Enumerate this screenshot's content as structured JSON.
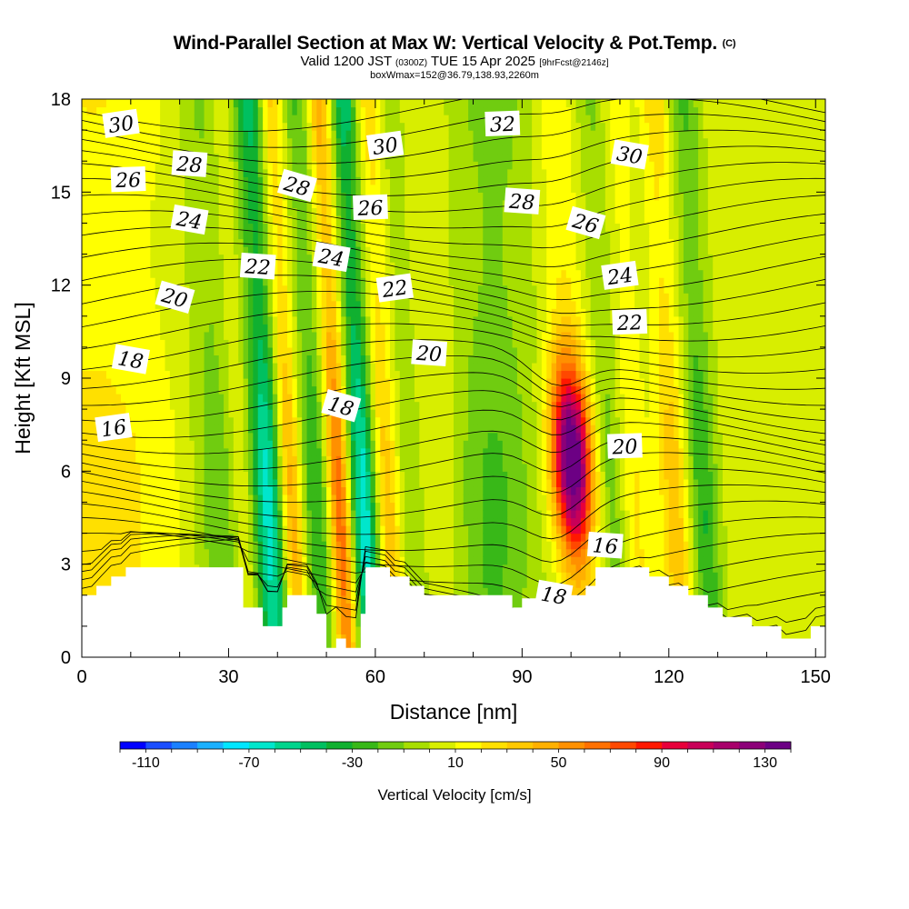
{
  "header": {
    "title_main": "Wind-Parallel Section at Max W: Vertical Velocity & Pot.Temp.",
    "title_mark": "(C)",
    "valid_prefix": "Valid 1200 JST",
    "valid_utc": "(0300Z)",
    "valid_date": "TUE 15 Apr 2025",
    "valid_fcst": "[9hrFcst@2146z]",
    "box_info": "boxWmax=152@36.79,138.93,2260m"
  },
  "chart_data": {
    "type": "heatmap",
    "xlabel": "Distance [nm]",
    "ylabel": "Height [Kft MSL]",
    "xlim": [
      0,
      152
    ],
    "ylim": [
      0,
      18
    ],
    "xticks": [
      0,
      30,
      60,
      90,
      120,
      150
    ],
    "yticks": [
      0,
      3,
      6,
      9,
      12,
      15,
      18
    ],
    "colorbar": {
      "label": "Vertical Velocity [cm/s]",
      "tick_labels": [
        -110,
        -70,
        -30,
        10,
        50,
        90,
        130
      ],
      "levels": [
        -120,
        -110,
        -100,
        -90,
        -80,
        -70,
        -60,
        -50,
        -40,
        -30,
        -20,
        -10,
        0,
        10,
        20,
        30,
        40,
        50,
        60,
        70,
        80,
        90,
        100,
        110,
        120,
        130,
        140
      ],
      "colors": [
        "#0000ff",
        "#1a4dff",
        "#1a80ff",
        "#1ab0ff",
        "#00e6ff",
        "#00e6cc",
        "#00d48c",
        "#00c060",
        "#10b030",
        "#38b818",
        "#70cc10",
        "#a8de00",
        "#d8ee00",
        "#ffff00",
        "#ffe000",
        "#ffc800",
        "#ffb000",
        "#ff9000",
        "#ff7000",
        "#ff4800",
        "#ff1800",
        "#e8003a",
        "#c80058",
        "#a8006a",
        "#8c0078",
        "#6c0084"
      ]
    },
    "terrain": {
      "x": [
        0,
        3,
        3,
        6,
        6,
        9,
        9,
        12,
        12,
        15,
        15,
        19,
        19,
        22,
        22,
        26,
        26,
        28,
        28,
        29,
        29,
        31,
        31,
        33,
        33,
        35,
        35,
        37,
        37,
        39,
        39,
        41,
        41,
        42,
        42,
        45,
        45,
        48,
        48,
        50,
        50,
        52,
        52,
        54,
        54,
        57,
        57,
        58,
        58,
        60,
        60,
        63,
        63,
        67,
        67,
        70,
        70,
        73,
        73,
        75,
        75,
        80,
        80,
        84,
        84,
        88,
        88,
        90,
        90,
        93,
        93,
        96,
        96,
        98,
        98,
        103,
        103,
        105,
        105,
        106,
        106,
        110,
        110,
        113,
        113,
        116,
        116,
        120,
        120,
        124,
        124,
        128,
        128,
        131,
        131,
        134,
        134,
        137,
        137,
        140,
        140,
        143,
        143,
        146,
        146,
        149,
        149,
        152
      ],
      "height": [
        2,
        2,
        2.3,
        2.3,
        2.6,
        2.6,
        2.9,
        2.9,
        2.9,
        2.9,
        2.9,
        2.9,
        2.9,
        2.9,
        2.9,
        2.9,
        2.9,
        2.9,
        2.9,
        2.9,
        2.9,
        2.9,
        2.9,
        2.9,
        1.6,
        1.6,
        1.6,
        1.6,
        1.0,
        1.0,
        1.0,
        1.0,
        1.6,
        1.6,
        2.0,
        2.0,
        2.0,
        2.0,
        1.4,
        1.4,
        0.3,
        0.3,
        0.6,
        0.6,
        0.3,
        0.3,
        1.4,
        1.4,
        2.9,
        2.9,
        2.9,
        2.9,
        2.6,
        2.6,
        2.3,
        2.3,
        2.0,
        2.0,
        2.0,
        2.0,
        2.0,
        2.0,
        2.0,
        2.0,
        2.0,
        2.0,
        1.6,
        1.6,
        1.9,
        1.9,
        1.9,
        1.9,
        1.9,
        1.9,
        2.0,
        2.0,
        2.3,
        2.3,
        2.9,
        2.9,
        2.9,
        2.9,
        2.9,
        2.9,
        2.9,
        2.9,
        2.6,
        2.6,
        2.3,
        2.3,
        2.0,
        2.0,
        1.6,
        1.6,
        1.3,
        1.3,
        1.3,
        1.3,
        1.0,
        1.0,
        1.0,
        1.0,
        0.6,
        0.6,
        0.6,
        0.6,
        1.0,
        1.0
      ]
    },
    "w_features": [
      {
        "x": 2,
        "w": 18,
        "max": 25
      },
      {
        "x": 24,
        "w": 5,
        "max": -25
      },
      {
        "x": 29,
        "w": 3,
        "max": 20
      },
      {
        "x": 34,
        "w": 3.5,
        "max": -70
      },
      {
        "x": 38.5,
        "w": 2.5,
        "max": 55
      },
      {
        "x": 44,
        "w": 3.5,
        "max": -35
      },
      {
        "x": 48.5,
        "w": 2.5,
        "max": 75
      },
      {
        "x": 53.5,
        "w": 3,
        "max": -75
      },
      {
        "x": 58,
        "w": 3,
        "max": 40
      },
      {
        "x": 63,
        "w": 3,
        "max": -15
      },
      {
        "x": 69,
        "w": 5,
        "max": 10
      },
      {
        "x": 84,
        "w": 8,
        "max": -25
      },
      {
        "x": 96.5,
        "w": 4,
        "max": 140
      },
      {
        "x": 104,
        "w": 3,
        "max": -20
      },
      {
        "x": 109,
        "w": 3,
        "max": 20
      },
      {
        "x": 117,
        "w": 3,
        "max": 35
      },
      {
        "x": 123,
        "w": 3,
        "max": -35
      },
      {
        "x": 140,
        "w": 14,
        "max": 5
      }
    ],
    "theta_labels": [
      {
        "text": "30",
        "x": 8,
        "y": 17.2
      },
      {
        "text": "26",
        "x": 9.5,
        "y": 15.4
      },
      {
        "text": "28",
        "x": 22,
        "y": 15.9
      },
      {
        "text": "24",
        "x": 22,
        "y": 14.1
      },
      {
        "text": "28",
        "x": 44,
        "y": 15.2
      },
      {
        "text": "30",
        "x": 62,
        "y": 16.5
      },
      {
        "text": "26",
        "x": 59,
        "y": 14.5
      },
      {
        "text": "22",
        "x": 36,
        "y": 12.6
      },
      {
        "text": "24",
        "x": 51,
        "y": 12.9
      },
      {
        "text": "20",
        "x": 19,
        "y": 11.6
      },
      {
        "text": "22",
        "x": 64,
        "y": 11.9
      },
      {
        "text": "32",
        "x": 86,
        "y": 17.2
      },
      {
        "text": "28",
        "x": 90,
        "y": 14.7
      },
      {
        "text": "30",
        "x": 112,
        "y": 16.2
      },
      {
        "text": "26",
        "x": 103,
        "y": 14.0
      },
      {
        "text": "24",
        "x": 110,
        "y": 12.3
      },
      {
        "text": "22",
        "x": 112,
        "y": 10.8
      },
      {
        "text": "20",
        "x": 71,
        "y": 9.8
      },
      {
        "text": "18",
        "x": 10,
        "y": 9.6
      },
      {
        "text": "18",
        "x": 53,
        "y": 8.1
      },
      {
        "text": "16",
        "x": 6.5,
        "y": 7.4
      },
      {
        "text": "20",
        "x": 111,
        "y": 6.8
      },
      {
        "text": "16",
        "x": 107,
        "y": 3.6
      },
      {
        "text": "18",
        "x": 96.5,
        "y": 2.0
      }
    ]
  }
}
